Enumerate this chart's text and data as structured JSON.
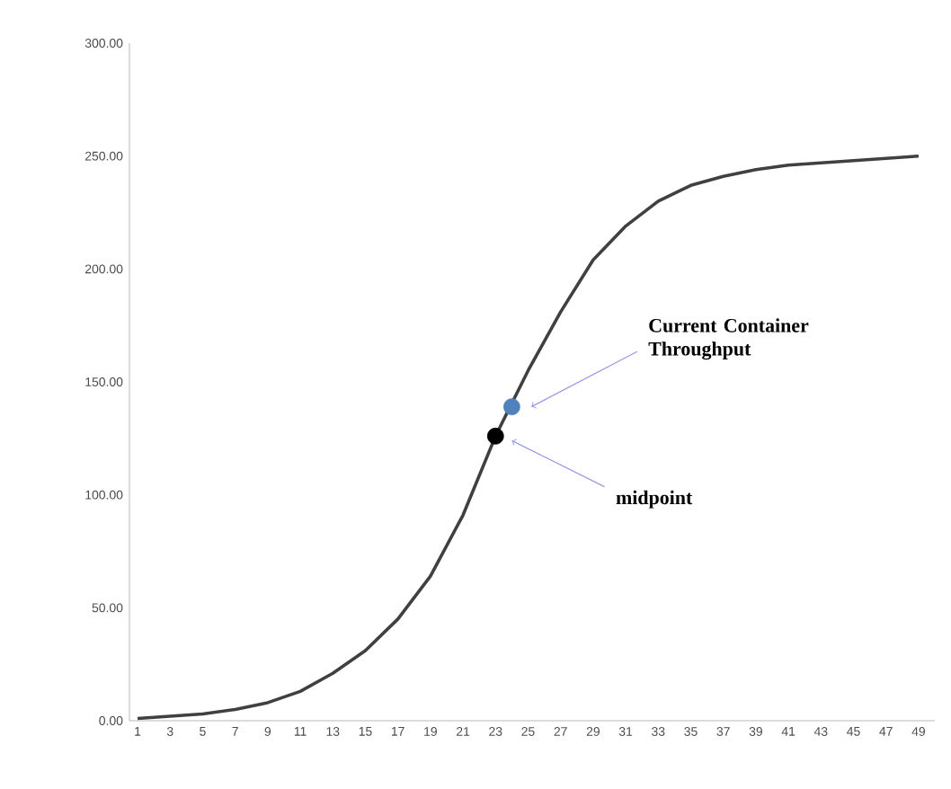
{
  "chart_data": {
    "type": "line",
    "xlim": [
      0.5,
      50
    ],
    "ylim": [
      0,
      300
    ],
    "xticks": [
      1,
      3,
      5,
      7,
      9,
      11,
      13,
      15,
      17,
      19,
      21,
      23,
      25,
      27,
      29,
      31,
      33,
      35,
      37,
      39,
      41,
      43,
      45,
      47,
      49
    ],
    "yticks": [
      {
        "value": 0,
        "label": "0.00"
      },
      {
        "value": 50,
        "label": "50.00"
      },
      {
        "value": 100,
        "label": "100.00"
      },
      {
        "value": 150,
        "label": "150.00"
      },
      {
        "value": 200,
        "label": "200.00"
      },
      {
        "value": 250,
        "label": "250.00"
      },
      {
        "value": 300,
        "label": "300.00"
      }
    ],
    "grid": false,
    "series": [
      {
        "color": "#404040",
        "marker": "none",
        "x": [
          1,
          3,
          5,
          7,
          9,
          11,
          13,
          15,
          17,
          19,
          21,
          23,
          25,
          27,
          29,
          31,
          33,
          35,
          37,
          39,
          41,
          43,
          45,
          47,
          49
        ],
        "values": [
          1,
          2,
          3,
          5,
          8,
          13,
          21,
          31,
          45,
          64,
          91,
          126,
          155,
          181,
          204,
          219,
          230,
          237,
          241,
          244,
          246,
          247,
          248,
          249,
          250
        ]
      },
      {
        "type": "scatter",
        "color": "#000000",
        "marker": "circle",
        "x": [
          23
        ],
        "values": [
          126
        ]
      },
      {
        "type": "scatter",
        "color": "#4f81bd",
        "marker": "circle",
        "x": [
          24
        ],
        "values": [
          139
        ]
      }
    ],
    "annotations": [
      "Current Container Throughput",
      "midpoint"
    ]
  }
}
